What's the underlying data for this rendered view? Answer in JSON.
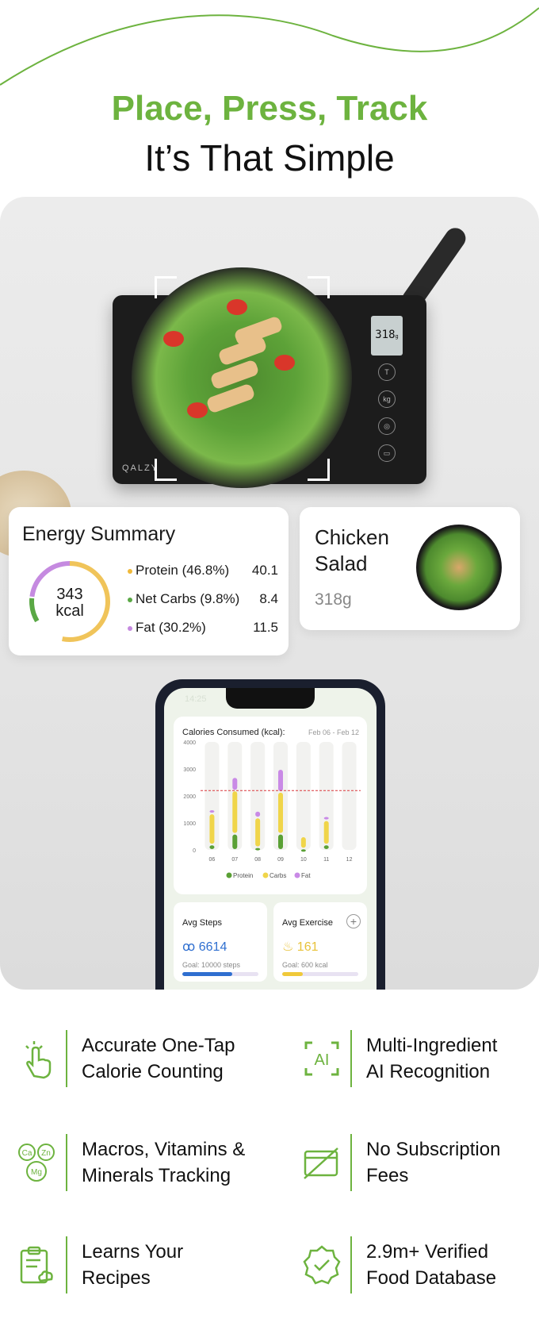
{
  "header": {
    "title_green": "Place, Press, Track",
    "title_black": "It’s That Simple"
  },
  "scale": {
    "brand": "QALZY",
    "display_value": "318",
    "display_unit": "g"
  },
  "energy_summary": {
    "title": "Energy Summary",
    "kcal_value": "343",
    "kcal_unit": "kcal",
    "macros": [
      {
        "label": "Protein (46.8%)",
        "value": "40.1",
        "color": "#f0b93a"
      },
      {
        "label": "Net Carbs (9.8%)",
        "value": "8.4",
        "color": "#5aa845"
      },
      {
        "label": "Fat (30.2%)",
        "value": "11.5",
        "color": "#c58ae0"
      }
    ]
  },
  "food_card": {
    "name": "Chicken Salad",
    "weight": "318g"
  },
  "phone": {
    "time": "14:25",
    "avg_steps": {
      "label": "Avg Steps",
      "value": "6614",
      "goal": "Goal: 10000 steps",
      "progress_percent": 66,
      "color": "#2f6fd0"
    },
    "avg_exercise": {
      "label": "Avg Exercise",
      "value": "161",
      "goal": "Goal: 600 kcal",
      "progress_percent": 27,
      "color": "#f0c93a"
    }
  },
  "chart_data": {
    "type": "bar",
    "stacked": true,
    "title": "Calories Consumed (kcal):",
    "date_range": "Feb 06 - Feb 12",
    "categories": [
      "06",
      "07",
      "08",
      "09",
      "10",
      "11",
      "12"
    ],
    "ylim": [
      0,
      4000
    ],
    "yticks": [
      "4000",
      "3000",
      "2000",
      "1000",
      "0"
    ],
    "goal_line": 2200,
    "series": [
      {
        "name": "Protein",
        "color": "#5aa035",
        "values": [
          200,
          600,
          100,
          600,
          50,
          200,
          0
        ]
      },
      {
        "name": "Carbs",
        "color": "#f0d54a",
        "values": [
          1150,
          1600,
          1100,
          1550,
          450,
          900,
          0
        ]
      },
      {
        "name": "Fat",
        "color": "#c98ae6",
        "values": [
          150,
          500,
          250,
          850,
          0,
          150,
          0
        ]
      }
    ]
  },
  "features": [
    {
      "icon": "tap-hand-icon",
      "line1": "Accurate One-Tap",
      "line2": "Calorie Counting"
    },
    {
      "icon": "ai-scan-icon",
      "line1": "Multi-Ingredient",
      "line2": "AI Recognition"
    },
    {
      "icon": "minerals-icon",
      "line1": "Macros, Vitamins &",
      "line2": "Minerals Tracking"
    },
    {
      "icon": "no-subscription-icon",
      "line1": "No Subscription",
      "line2": "Fees"
    },
    {
      "icon": "recipe-clipboard-icon",
      "line1": "Learns Your",
      "line2": "Recipes"
    },
    {
      "icon": "verified-badge-icon",
      "line1": "2.9m+ Verified",
      "line2": "Food Database"
    }
  ],
  "colors": {
    "brand_green": "#6db33f"
  }
}
